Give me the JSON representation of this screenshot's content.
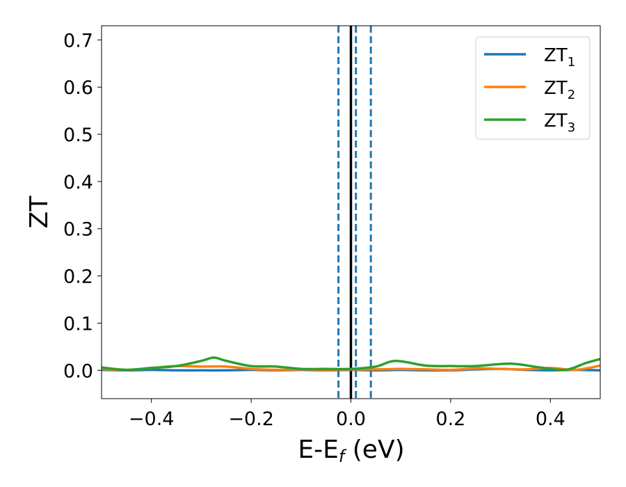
{
  "chart_data": {
    "type": "line",
    "xlabel": "E-E",
    "xlabel_sub": "f",
    "xlabel_unit": " (eV)",
    "ylabel": "ZT",
    "xlim": [
      -0.5,
      0.5
    ],
    "ylim": [
      -0.06,
      0.73
    ],
    "x_ticks": [
      -0.4,
      -0.2,
      0.0,
      0.2,
      0.4
    ],
    "x_tick_labels": [
      "−0.4",
      "−0.2",
      "0.0",
      "0.2",
      "0.4"
    ],
    "y_ticks": [
      0.0,
      0.1,
      0.2,
      0.3,
      0.4,
      0.5,
      0.6,
      0.7
    ],
    "y_tick_labels": [
      "0.0",
      "0.1",
      "0.2",
      "0.3",
      "0.4",
      "0.5",
      "0.6",
      "0.7"
    ],
    "grid": false,
    "legend_position": "top-right",
    "vertical_lines": [
      {
        "x": 0.0,
        "style": "solid",
        "color": "#000000"
      },
      {
        "x": -0.025,
        "style": "dashed",
        "color": "#1f77b4"
      },
      {
        "x": 0.01,
        "style": "dashed",
        "color": "#1f77b4"
      },
      {
        "x": 0.04,
        "style": "dashed",
        "color": "#1f77b4"
      }
    ],
    "series": [
      {
        "name": "ZT",
        "name_sub": "1",
        "color": "#1f77b4",
        "x": [
          -0.5,
          -0.45,
          -0.4,
          -0.35,
          -0.3,
          -0.25,
          -0.2,
          -0.15,
          -0.1,
          -0.05,
          0.0,
          0.05,
          0.1,
          0.15,
          0.2,
          0.25,
          0.3,
          0.35,
          0.4,
          0.45,
          0.5
        ],
        "y": [
          0.001,
          0.0,
          0.001,
          0.0,
          0.0,
          0.0,
          0.001,
          0.0,
          0.001,
          0.0,
          0.001,
          0.0,
          0.001,
          0.0,
          0.0,
          0.002,
          0.003,
          0.001,
          0.0,
          0.001,
          0.0
        ]
      },
      {
        "name": "ZT",
        "name_sub": "2",
        "color": "#ff7f0e",
        "x": [
          -0.5,
          -0.45,
          -0.4,
          -0.35,
          -0.3,
          -0.25,
          -0.2,
          -0.15,
          -0.1,
          -0.05,
          0.0,
          0.05,
          0.1,
          0.15,
          0.2,
          0.25,
          0.3,
          0.35,
          0.4,
          0.45,
          0.5
        ],
        "y": [
          0.003,
          0.001,
          0.005,
          0.009,
          0.008,
          0.008,
          0.003,
          0.001,
          0.002,
          0.001,
          0.002,
          0.002,
          0.003,
          0.002,
          0.001,
          0.004,
          0.003,
          0.002,
          0.005,
          0.001,
          0.01
        ]
      },
      {
        "name": "ZT",
        "name_sub": "3",
        "color": "#2ca02c",
        "x": [
          -0.5,
          -0.45,
          -0.4,
          -0.35,
          -0.3,
          -0.275,
          -0.25,
          -0.2,
          -0.15,
          -0.1,
          -0.05,
          0.0,
          0.05,
          0.09,
          0.15,
          0.2,
          0.25,
          0.32,
          0.38,
          0.43,
          0.47,
          0.5
        ],
        "y": [
          0.006,
          0.001,
          0.005,
          0.009,
          0.02,
          0.027,
          0.02,
          0.009,
          0.008,
          0.003,
          0.003,
          0.003,
          0.008,
          0.02,
          0.01,
          0.009,
          0.009,
          0.014,
          0.006,
          0.001,
          0.015,
          0.024
        ]
      }
    ]
  }
}
